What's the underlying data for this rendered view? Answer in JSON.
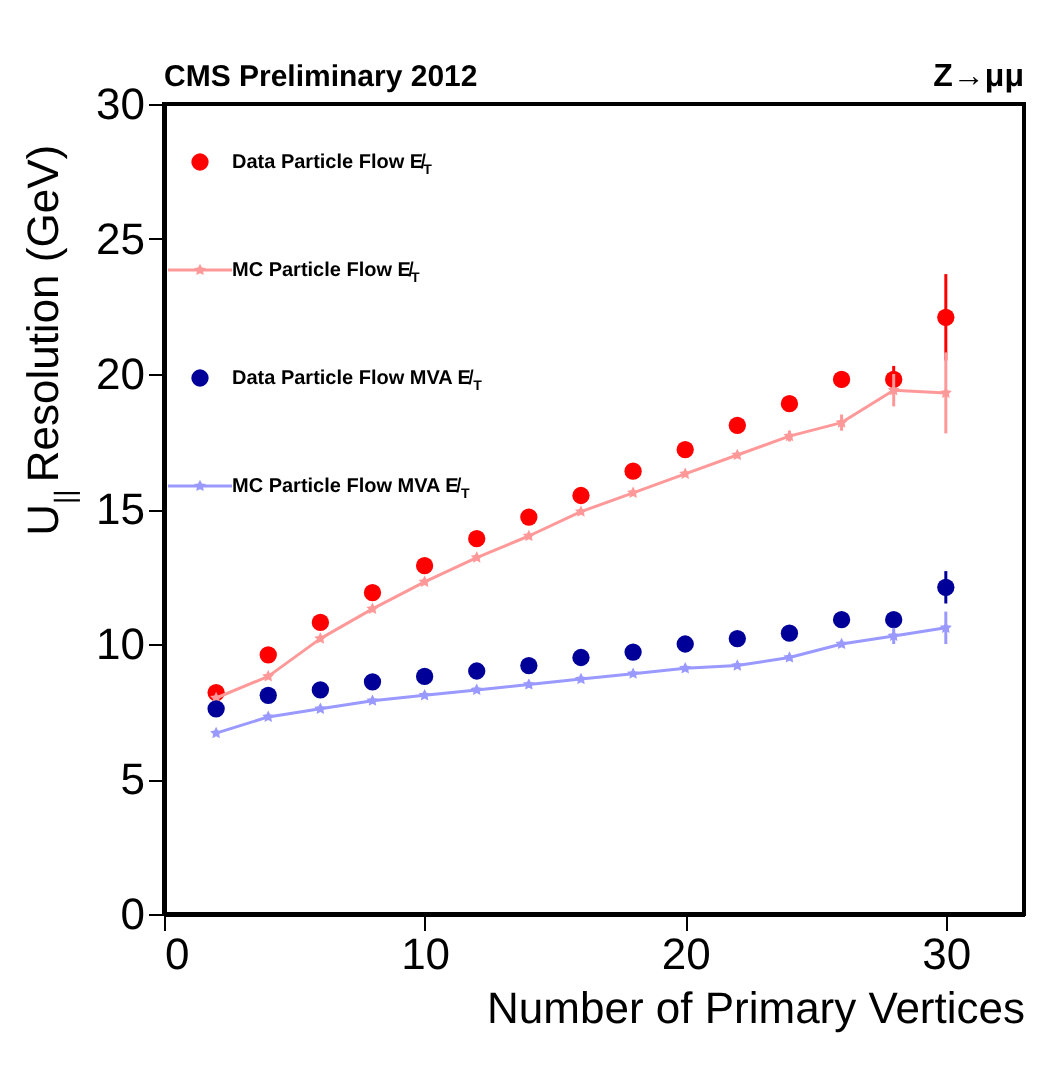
{
  "chart_data": {
    "type": "scatter",
    "title": "CMS Preliminary 2012",
    "xlabel": "Number of Primary Vertices",
    "ylabel": "U$_{||}$ Resolution (GeV)",
    "annotations": [
      "Z→μμ"
    ],
    "x": [
      2,
      4,
      6,
      8,
      10,
      12,
      14,
      16,
      18,
      20,
      22,
      24,
      26,
      28,
      30
    ],
    "series": [
      {
        "name": "Data Particle Flow E̸$_{T}$",
        "type": "scatter",
        "marker": "circle",
        "color": "#ff0000",
        "values": [
          8.2,
          9.6,
          10.8,
          11.9,
          12.9,
          13.9,
          14.7,
          15.5,
          16.4,
          17.2,
          18.1,
          18.9,
          19.8,
          19.8,
          22.1
        ],
        "errors": [
          null,
          null,
          null,
          null,
          null,
          null,
          null,
          null,
          null,
          null,
          null,
          null,
          0.3,
          0.5,
          1.6
        ]
      },
      {
        "name": "MC Particle Flow E̸$_{T}$",
        "type": "line",
        "marker": "star",
        "color": "#ff9999",
        "values": [
          8.0,
          8.8,
          10.2,
          11.3,
          12.3,
          13.2,
          14.0,
          14.9,
          15.6,
          16.3,
          17.0,
          17.7,
          18.2,
          19.4,
          19.3
        ],
        "errors": [
          null,
          null,
          null,
          null,
          null,
          null,
          null,
          null,
          null,
          null,
          null,
          0.2,
          0.3,
          0.6,
          1.5
        ]
      },
      {
        "name": "Data Particle Flow MVA E̸$_{T}$",
        "type": "scatter",
        "marker": "circle",
        "color": "#000099",
        "values": [
          7.6,
          8.1,
          8.3,
          8.6,
          8.8,
          9.0,
          9.2,
          9.5,
          9.7,
          10.0,
          10.2,
          10.4,
          10.9,
          10.9,
          12.1
        ],
        "errors": [
          null,
          null,
          null,
          null,
          null,
          null,
          null,
          null,
          null,
          null,
          null,
          null,
          null,
          0.2,
          0.6
        ]
      },
      {
        "name": "MC Particle Flow MVA E̸$_{T}$",
        "type": "line",
        "marker": "star",
        "color": "#9999ff",
        "values": [
          6.7,
          7.3,
          7.6,
          7.9,
          8.1,
          8.3,
          8.5,
          8.7,
          8.9,
          9.1,
          9.2,
          9.5,
          10.0,
          10.3,
          10.6
        ],
        "errors": [
          null,
          null,
          null,
          null,
          null,
          null,
          null,
          null,
          null,
          null,
          null,
          null,
          null,
          0.3,
          0.6
        ]
      }
    ],
    "xlim": [
      0,
      33
    ],
    "xticks": [
      0,
      10,
      20,
      30
    ],
    "ylim": [
      0,
      30
    ],
    "yticks": [
      0,
      5,
      10,
      15,
      20,
      25,
      30
    ],
    "grid": false,
    "legend": "top left"
  }
}
